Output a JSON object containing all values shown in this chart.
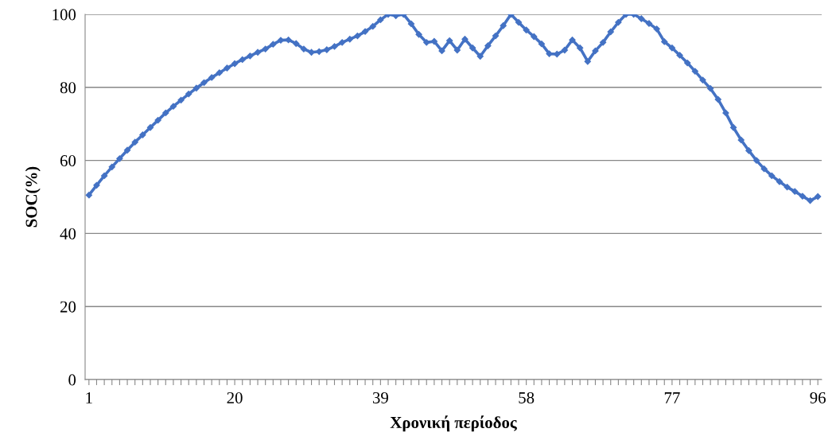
{
  "chart_data": {
    "type": "line",
    "xlabel": "Χρονική περίοδος",
    "ylabel": "SOC(%)",
    "categories": [
      "1",
      null,
      null,
      null,
      null,
      null,
      null,
      null,
      null,
      null,
      null,
      null,
      null,
      null,
      null,
      null,
      null,
      null,
      null,
      "20",
      null,
      null,
      null,
      null,
      null,
      null,
      null,
      null,
      null,
      null,
      null,
      null,
      null,
      null,
      null,
      null,
      null,
      null,
      "39",
      null,
      null,
      null,
      null,
      null,
      null,
      null,
      null,
      null,
      null,
      null,
      null,
      null,
      null,
      null,
      null,
      null,
      null,
      "58",
      null,
      null,
      null,
      null,
      null,
      null,
      null,
      null,
      null,
      null,
      null,
      null,
      null,
      null,
      null,
      null,
      null,
      null,
      "77",
      null,
      null,
      null,
      null,
      null,
      null,
      null,
      null,
      null,
      null,
      null,
      null,
      null,
      null,
      null,
      null,
      null,
      null,
      "96"
    ],
    "series": [
      {
        "color": "#4472c4",
        "values": [
          50.5,
          53.2,
          55.8,
          58.2,
          60.5,
          62.8,
          65,
          67,
          69,
          71,
          73,
          74.8,
          76.5,
          78.2,
          79.8,
          81.3,
          82.7,
          84,
          85.3,
          86.5,
          87.6,
          88.6,
          89.6,
          90.5,
          91.8,
          92.9,
          93,
          92,
          90.5,
          89.6,
          89.8,
          90.3,
          91.2,
          92.3,
          93.2,
          94.1,
          95.3,
          96.7,
          98.5,
          100,
          99.6,
          100,
          97.4,
          94.5,
          92.3,
          92.6,
          90,
          92.8,
          90.2,
          93.2,
          90.8,
          88.5,
          91.4,
          94.1,
          96.9,
          100,
          97.8,
          95.7,
          93.9,
          91.9,
          89.2,
          89.1,
          90.2,
          93,
          90.8,
          87.1,
          90,
          92.3,
          95.2,
          97.8,
          100,
          100,
          98.8,
          97.5,
          96,
          92.5,
          90.8,
          88.8,
          86.7,
          84.4,
          82,
          79.7,
          76.7,
          73,
          69,
          65.6,
          62.7,
          60,
          57.7,
          55.8,
          54.2,
          52.7,
          51.5,
          50.2,
          49,
          50.1
        ]
      }
    ],
    "ylim": [
      0,
      100
    ],
    "yticks": [
      0,
      20,
      40,
      60,
      80,
      100
    ],
    "grid": "y",
    "marker": "diamond",
    "line_style": "solid",
    "legend": false
  }
}
